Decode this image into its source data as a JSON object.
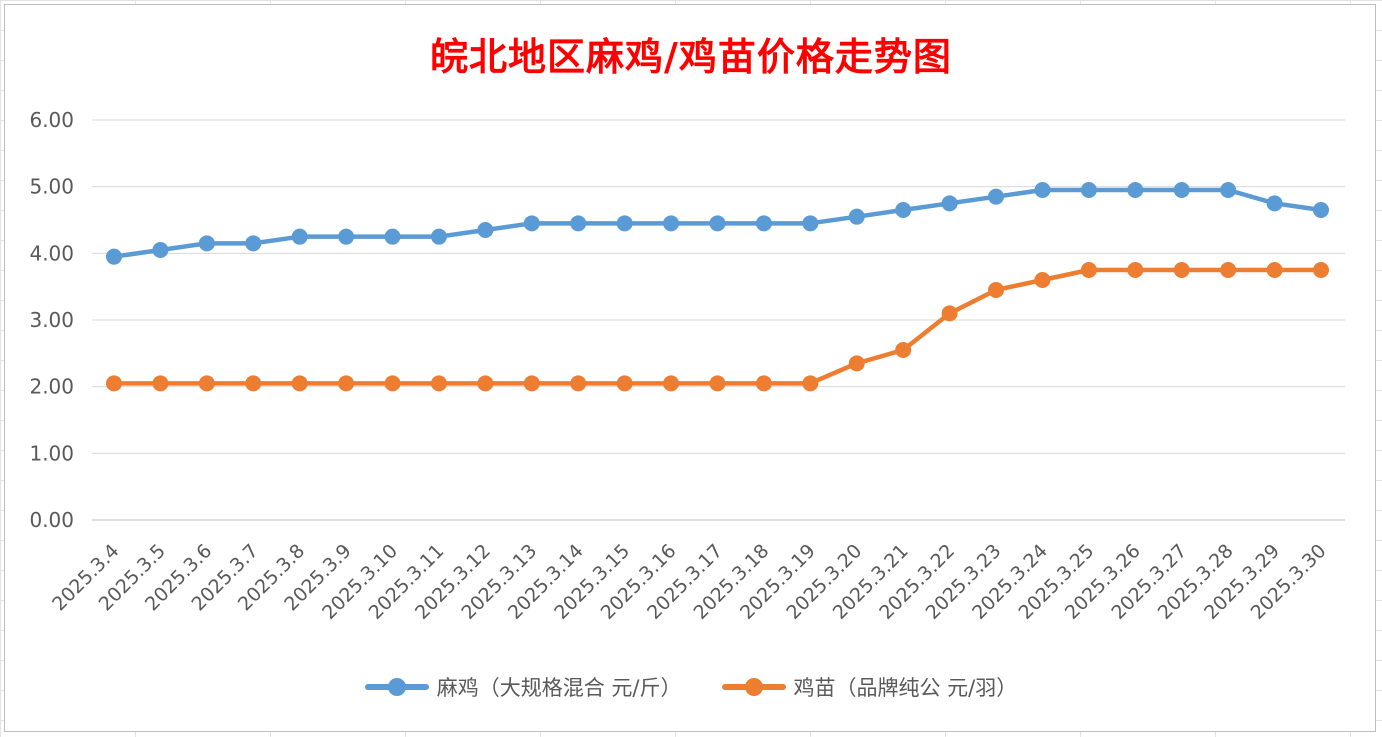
{
  "chart_data": {
    "type": "line",
    "title": "皖北地区麻鸡/鸡苗价格走势图",
    "title_color": "#ff0000",
    "xlabel": "",
    "ylabel": "",
    "ylim": [
      0,
      6
    ],
    "ytick_values": [
      0,
      1,
      2,
      3,
      4,
      5,
      6
    ],
    "ytick_labels": [
      "0.00",
      "1.00",
      "2.00",
      "3.00",
      "4.00",
      "5.00",
      "6.00"
    ],
    "grid": true,
    "legend_position": "bottom",
    "categories": [
      "2025.3.4",
      "2025.3.5",
      "2025.3.6",
      "2025.3.7",
      "2025.3.8",
      "2025.3.9",
      "2025.3.10",
      "2025.3.11",
      "2025.3.12",
      "2025.3.13",
      "2025.3.14",
      "2025.3.15",
      "2025.3.16",
      "2025.3.17",
      "2025.3.18",
      "2025.3.19",
      "2025.3.20",
      "2025.3.21",
      "2025.3.22",
      "2025.3.23",
      "2025.3.24",
      "2025.3.25",
      "2025.3.26",
      "2025.3.27",
      "2025.3.28",
      "2025.3.29",
      "2025.3.30"
    ],
    "series": [
      {
        "name": "麻鸡（大规格混合 元/斤）",
        "color": "#5b9bd5",
        "values": [
          3.95,
          4.05,
          4.15,
          4.15,
          4.25,
          4.25,
          4.25,
          4.25,
          4.35,
          4.45,
          4.45,
          4.45,
          4.45,
          4.45,
          4.45,
          4.45,
          4.55,
          4.65,
          4.75,
          4.85,
          4.95,
          4.95,
          4.95,
          4.95,
          4.95,
          4.75,
          4.65
        ]
      },
      {
        "name": "鸡苗（品牌纯公 元/羽）",
        "color": "#ed7d31",
        "values": [
          2.05,
          2.05,
          2.05,
          2.05,
          2.05,
          2.05,
          2.05,
          2.05,
          2.05,
          2.05,
          2.05,
          2.05,
          2.05,
          2.05,
          2.05,
          2.05,
          2.35,
          2.55,
          3.1,
          3.45,
          3.6,
          3.75,
          3.75,
          3.75,
          3.75,
          3.75,
          3.75
        ]
      }
    ]
  }
}
